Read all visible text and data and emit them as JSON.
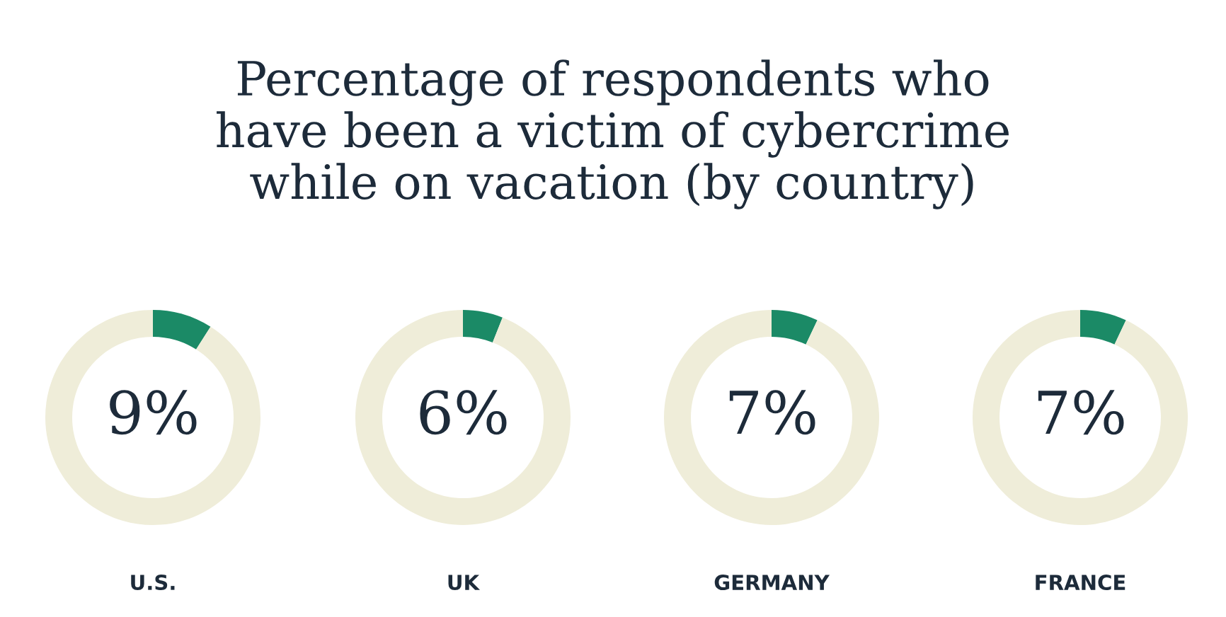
{
  "chart_data": [
    {
      "type": "donut",
      "title": "Percentage of respondents who\nhave been a victim of cybercrime\nwhile on vacation (by country)",
      "xlabel": "U.S.",
      "categories": [
        null,
        null
      ],
      "values": [
        9,
        91
      ],
      "colors": [
        "#1b8a66",
        "#efedd9"
      ],
      "value_labels": [
        "9%",
        null
      ]
    },
    {
      "type": "donut",
      "xlabel": "UK",
      "categories": [
        null,
        null
      ],
      "values": [
        6,
        94
      ],
      "colors": [
        "#1b8a66",
        "#efedd9"
      ],
      "value_labels": [
        "6%",
        null
      ]
    },
    {
      "type": "donut",
      "xlabel": "GERMANY",
      "categories": [
        null,
        null
      ],
      "values": [
        7,
        93
      ],
      "colors": [
        "#1b8a66",
        "#efedd9"
      ],
      "value_labels": [
        "7%",
        null
      ]
    },
    {
      "type": "donut",
      "xlabel": "FRANCE",
      "categories": [
        null,
        null
      ],
      "values": [
        7,
        93
      ],
      "colors": [
        "#1b8a66",
        "#efedd9"
      ],
      "value_labels": [
        "7%",
        null
      ]
    }
  ]
}
